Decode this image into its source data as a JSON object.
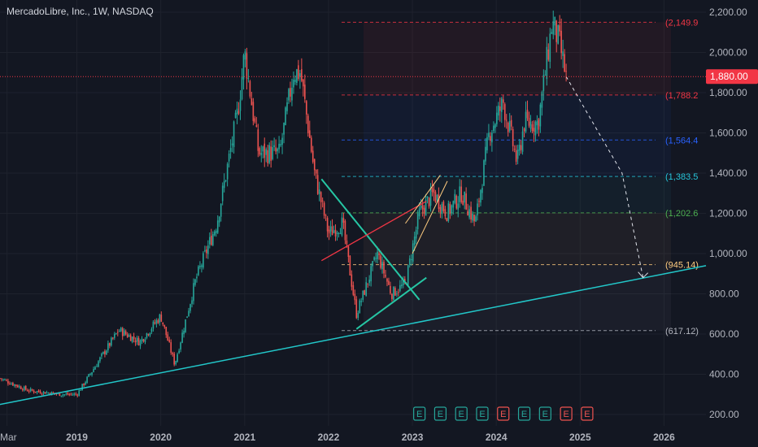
{
  "header": {
    "title": "MercadoLibre, Inc., 1W, NASDAQ"
  },
  "colors": {
    "background": "#131722",
    "up": "#26a69a",
    "down": "#ef5350",
    "text": "#b2b5be",
    "grid": "#1e222d",
    "trendline": "#22c7c9",
    "fib_red": "#f23645",
    "fib_blue": "#2962ff",
    "fib_teal": "#26c6da",
    "fib_orange": "#ffcc80",
    "price_tag": "#f23645"
  },
  "chart_data": {
    "type": "candlestick",
    "symbol": "MercadoLibre, Inc.",
    "interval": "1W",
    "exchange": "NASDAQ",
    "x_axis": {
      "tick_labels": [
        "Mar",
        "2019",
        "2020",
        "2021",
        "2022",
        "2023",
        "2024",
        "2025",
        "2026"
      ],
      "range": [
        "2018-02",
        "2026-07"
      ]
    },
    "y_axis": {
      "tick_labels": [
        "2,200.00",
        "2,000.00",
        "1,800.00",
        "1,600.00",
        "1,400.00",
        "1,200.00",
        "1,000.00",
        "800.00",
        "600.00",
        "400.00",
        "200.00"
      ],
      "range": [
        180,
        2260
      ]
    },
    "grid": true,
    "current_price": {
      "value": 1880.0,
      "label": "1,880.00"
    },
    "price_path_anchors": [
      {
        "date": "2018-02",
        "price": 380
      },
      {
        "date": "2018-06",
        "price": 320
      },
      {
        "date": "2018-11",
        "price": 300
      },
      {
        "date": "2019-01",
        "price": 300
      },
      {
        "date": "2019-07",
        "price": 620
      },
      {
        "date": "2019-10",
        "price": 560
      },
      {
        "date": "2020-01",
        "price": 690
      },
      {
        "date": "2020-03",
        "price": 450
      },
      {
        "date": "2020-06",
        "price": 870
      },
      {
        "date": "2020-09",
        "price": 1150
      },
      {
        "date": "2020-12",
        "price": 1700
      },
      {
        "date": "2021-01",
        "price": 2000
      },
      {
        "date": "2021-03",
        "price": 1500
      },
      {
        "date": "2021-06",
        "price": 1500
      },
      {
        "date": "2021-08",
        "price": 1900
      },
      {
        "date": "2021-09",
        "price": 1900
      },
      {
        "date": "2021-11",
        "price": 1400
      },
      {
        "date": "2022-01",
        "price": 1100
      },
      {
        "date": "2022-03",
        "price": 1150
      },
      {
        "date": "2022-05",
        "price": 700
      },
      {
        "date": "2022-08",
        "price": 1000
      },
      {
        "date": "2022-10",
        "price": 800
      },
      {
        "date": "2022-12",
        "price": 850
      },
      {
        "date": "2023-02",
        "price": 1200
      },
      {
        "date": "2023-04",
        "price": 1300
      },
      {
        "date": "2023-06",
        "price": 1200
      },
      {
        "date": "2023-08",
        "price": 1300
      },
      {
        "date": "2023-10",
        "price": 1150
      },
      {
        "date": "2023-12",
        "price": 1600
      },
      {
        "date": "2024-02",
        "price": 1750
      },
      {
        "date": "2024-04",
        "price": 1450
      },
      {
        "date": "2024-05",
        "price": 1650
      },
      {
        "date": "2024-07",
        "price": 1650
      },
      {
        "date": "2024-09",
        "price": 2150
      },
      {
        "date": "2024-10",
        "price": 2050
      },
      {
        "date": "2024-11",
        "price": 1880
      }
    ],
    "fib_levels": [
      {
        "label": "(2,149.9",
        "value": 2149.9,
        "color": "#f23645"
      },
      {
        "label": "(1,788.2",
        "value": 1788.2,
        "color": "#f23645"
      },
      {
        "label": "(1,564.4",
        "value": 1564.4,
        "color": "#2962ff"
      },
      {
        "label": "(1,383.5",
        "value": 1383.5,
        "color": "#26c6da"
      },
      {
        "label": "(1,202.6",
        "value": 1202.6,
        "color": "#4caf50"
      },
      {
        "label": "(945.14)",
        "value": 945.14,
        "color": "#ffcc80"
      },
      {
        "label": "(617.12)",
        "value": 617.12,
        "color": "#b2b5be"
      }
    ],
    "fib_range": {
      "start": "2022-06",
      "end": "2026-02"
    },
    "trendline": {
      "start": {
        "date": "2018-02",
        "price": 250
      },
      "end": {
        "date": "2026-07",
        "price": 940
      }
    },
    "triangle": {
      "upper": [
        {
          "date": "2021-12",
          "price": 1370
        },
        {
          "date": "2023-02",
          "price": 770
        }
      ],
      "lower": [
        {
          "date": "2022-05",
          "price": 625
        },
        {
          "date": "2023-03",
          "price": 880
        }
      ]
    },
    "red_trendline": [
      {
        "date": "2021-12",
        "price": 965
      },
      {
        "date": "2023-03",
        "price": 1260
      }
    ],
    "channel": {
      "upper": [
        {
          "date": "2022-12",
          "price": 1150
        },
        {
          "date": "2023-05",
          "price": 1390
        }
      ],
      "lower": [
        {
          "date": "2023-01",
          "price": 1000
        },
        {
          "date": "2023-06",
          "price": 1360
        }
      ]
    },
    "projection": [
      {
        "date": "2024-11",
        "price": 1880
      },
      {
        "date": "2025-07",
        "price": 1400
      },
      {
        "date": "2025-10",
        "price": 880
      }
    ],
    "earnings_markers": [
      {
        "label": "E",
        "date": "2023-02",
        "type": "beat"
      },
      {
        "label": "E",
        "date": "2023-05",
        "type": "beat"
      },
      {
        "label": "E",
        "date": "2023-08",
        "type": "beat"
      },
      {
        "label": "E",
        "date": "2023-11",
        "type": "beat"
      },
      {
        "label": "E",
        "date": "2024-02",
        "type": "miss"
      },
      {
        "label": "E",
        "date": "2024-05",
        "type": "beat"
      },
      {
        "label": "E",
        "date": "2024-08",
        "type": "beat"
      },
      {
        "label": "E",
        "date": "2024-11",
        "type": "miss"
      },
      {
        "label": "E",
        "date": "2025-02",
        "type": "miss"
      }
    ]
  }
}
